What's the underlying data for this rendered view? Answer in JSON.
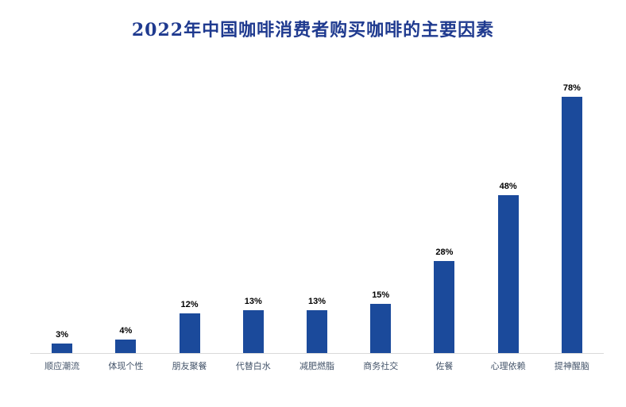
{
  "colors": {
    "bar": "#1b4a9b",
    "title": "#1f3a8f",
    "axis_label": "#44546a",
    "value_label": "#000000",
    "baseline": "#d9d9d9"
  },
  "chart_data": {
    "type": "bar",
    "title": "2022年中国咖啡消费者购买咖啡的主要因素",
    "categories": [
      "顺应潮流",
      "体现个性",
      "朋友聚餐",
      "代替白水",
      "减肥燃脂",
      "商务社交",
      "佐餐",
      "心理依赖",
      "提神醒脑"
    ],
    "values": [
      3,
      4,
      12,
      13,
      13,
      15,
      28,
      48,
      78
    ],
    "data_labels": [
      "3%",
      "4%",
      "12%",
      "13%",
      "13%",
      "15%",
      "28%",
      "48%",
      "78%"
    ],
    "xlabel": "",
    "ylabel": "",
    "ylim": [
      0,
      85
    ],
    "grid": false,
    "legend": "none",
    "unit": "%"
  }
}
